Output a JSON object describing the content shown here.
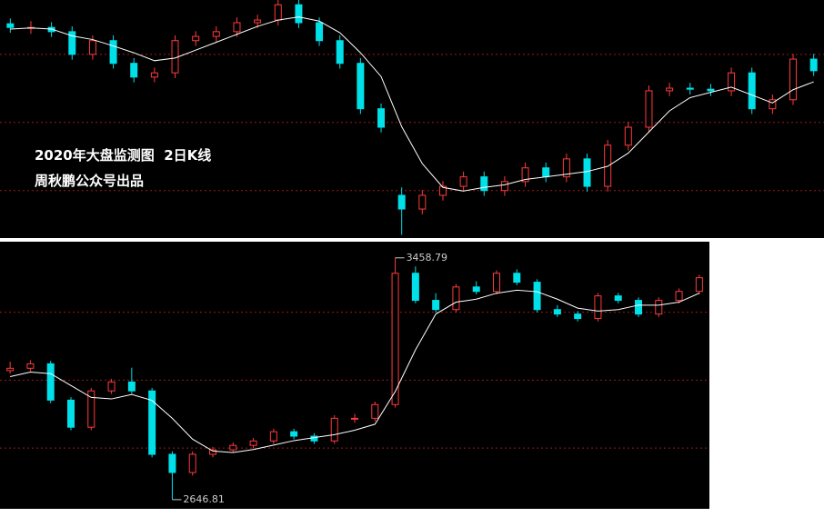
{
  "chart_data": [
    {
      "type": "candlestick",
      "title": "2020年大盘监测图  2日K线",
      "subtitle": "周秋鹏公众号出品",
      "up_color": "#ff3b3b",
      "down_color": "#00e0e8",
      "ma_color": "#ffffff",
      "grid_color": "#a01818",
      "ylim": [
        2679,
        3130
      ],
      "gridlines": [
        3027,
        2898,
        2769
      ],
      "ohlc": [
        [
          3085,
          3095,
          3068,
          3078
        ],
        [
          3078,
          3090,
          3066,
          3078
        ],
        [
          3078,
          3088,
          3060,
          3070
        ],
        [
          3070,
          3080,
          3017,
          3027
        ],
        [
          3027,
          3063,
          3017,
          3053
        ],
        [
          3053,
          3063,
          3000,
          3010
        ],
        [
          3010,
          3020,
          2974,
          2984
        ],
        [
          2984,
          3002,
          2974,
          2992
        ],
        [
          2992,
          3063,
          2982,
          3053
        ],
        [
          3053,
          3071,
          3043,
          3061
        ],
        [
          3061,
          3080,
          3051,
          3070
        ],
        [
          3070,
          3097,
          3060,
          3087
        ],
        [
          3087,
          3102,
          3077,
          3092
        ],
        [
          3092,
          3131,
          3082,
          3121
        ],
        [
          3121,
          3131,
          3077,
          3087
        ],
        [
          3087,
          3097,
          3043,
          3053
        ],
        [
          3053,
          3063,
          3000,
          3010
        ],
        [
          3010,
          3020,
          2914,
          2924
        ],
        [
          2924,
          2934,
          2879,
          2889
        ],
        [
          2760,
          2775,
          2685,
          2734
        ],
        [
          2734,
          2770,
          2724,
          2760
        ],
        [
          2760,
          2787,
          2750,
          2777
        ],
        [
          2777,
          2805,
          2767,
          2795
        ],
        [
          2795,
          2805,
          2759,
          2769
        ],
        [
          2769,
          2796,
          2759,
          2786
        ],
        [
          2786,
          2822,
          2776,
          2812
        ],
        [
          2812,
          2822,
          2785,
          2795
        ],
        [
          2795,
          2839,
          2785,
          2829
        ],
        [
          2829,
          2839,
          2767,
          2777
        ],
        [
          2777,
          2865,
          2767,
          2855
        ],
        [
          2855,
          2899,
          2845,
          2889
        ],
        [
          2889,
          2968,
          2879,
          2958
        ],
        [
          2958,
          2973,
          2948,
          2963
        ],
        [
          2963,
          2973,
          2951,
          2961
        ],
        [
          2961,
          2971,
          2948,
          2958
        ],
        [
          2958,
          3002,
          2948,
          2992
        ],
        [
          2992,
          3002,
          2914,
          2924
        ],
        [
          2924,
          2951,
          2914,
          2941
        ],
        [
          2941,
          3028,
          2931,
          3018
        ],
        [
          3018,
          3028,
          2986,
          2996
        ]
      ],
      "ma": [
        3075,
        3077,
        3075,
        3062,
        3055,
        3043,
        3030,
        3015,
        3020,
        3035,
        3050,
        3065,
        3080,
        3092,
        3098,
        3090,
        3068,
        3030,
        2985,
        2890,
        2820,
        2775,
        2768,
        2775,
        2780,
        2790,
        2795,
        2800,
        2805,
        2815,
        2840,
        2880,
        2920,
        2945,
        2955,
        2965,
        2950,
        2935,
        2960,
        2975
      ]
    },
    {
      "type": "candlestick",
      "extreme_labels": true,
      "up_color": "#ff3b3b",
      "down_color": "#00e0e8",
      "ma_color": "#ffffff",
      "grid_color": "#a01818",
      "ylim": [
        2616,
        3513
      ],
      "gridlines": [
        3276,
        3048,
        2820
      ],
      "ohlc": [
        [
          3080,
          3110,
          3070,
          3088
        ],
        [
          3088,
          3115,
          3078,
          3103
        ],
        [
          3103,
          3113,
          2971,
          2981
        ],
        [
          2981,
          2991,
          2880,
          2890
        ],
        [
          2890,
          3022,
          2880,
          3012
        ],
        [
          3012,
          3052,
          3002,
          3042
        ],
        [
          3042,
          3090,
          3002,
          3012
        ],
        [
          3012,
          3022,
          2789,
          2799
        ],
        [
          2799,
          2809,
          2646.81,
          2738
        ],
        [
          2738,
          2809,
          2728,
          2799
        ],
        [
          2799,
          2824,
          2789,
          2814
        ],
        [
          2814,
          2839,
          2804,
          2829
        ],
        [
          2829,
          2854,
          2819,
          2844
        ],
        [
          2844,
          2885,
          2834,
          2875
        ],
        [
          2875,
          2885,
          2850,
          2860
        ],
        [
          2860,
          2870,
          2834,
          2844
        ],
        [
          2844,
          2930,
          2834,
          2920
        ],
        [
          2920,
          2935,
          2905,
          2920
        ],
        [
          2920,
          2976,
          2910,
          2966
        ],
        [
          2966,
          3458.79,
          2956,
          3407
        ],
        [
          3407,
          3430,
          3306,
          3316
        ],
        [
          3316,
          3340,
          3275,
          3285
        ],
        [
          3285,
          3371,
          3275,
          3361
        ],
        [
          3361,
          3380,
          3336,
          3346
        ],
        [
          3346,
          3417,
          3336,
          3407
        ],
        [
          3407,
          3420,
          3367,
          3377
        ],
        [
          3377,
          3387,
          3275,
          3285
        ],
        [
          3285,
          3300,
          3260,
          3270
        ],
        [
          3270,
          3280,
          3245,
          3255
        ],
        [
          3255,
          3341,
          3245,
          3331
        ],
        [
          3331,
          3341,
          3306,
          3316
        ],
        [
          3316,
          3326,
          3260,
          3270
        ],
        [
          3270,
          3326,
          3260,
          3316
        ],
        [
          3316,
          3356,
          3306,
          3346
        ],
        [
          3346,
          3402,
          3336,
          3392
        ]
      ],
      "ma": [
        3060,
        3075,
        3070,
        3030,
        2990,
        2985,
        3000,
        2980,
        2920,
        2850,
        2810,
        2805,
        2815,
        2830,
        2845,
        2855,
        2865,
        2880,
        2900,
        3010,
        3150,
        3270,
        3310,
        3320,
        3340,
        3350,
        3345,
        3320,
        3290,
        3280,
        3285,
        3300,
        3300,
        3310,
        3340
      ]
    }
  ]
}
